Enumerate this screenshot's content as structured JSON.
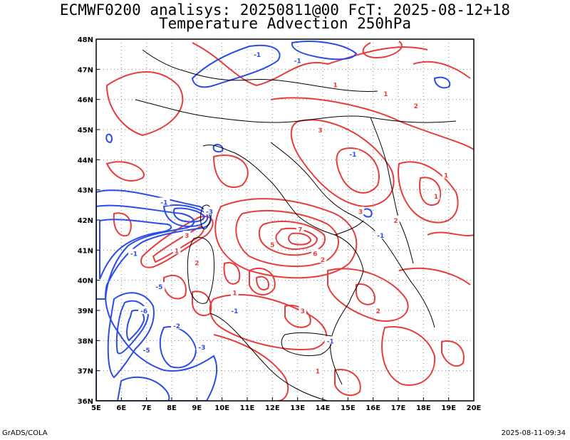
{
  "title_line1": "ECMWF0200 analisys: 20250811@00 FcT: 2025-08-12+18",
  "title_line2": "Temperature Advection 250hPa",
  "footer_left": "GrADS/COLA",
  "footer_right": "2025-08-11-09:34",
  "colors": {
    "positive_contour": "#e83c3c",
    "negative_contour": "#2b4ce8",
    "coastline": "#000000",
    "grid": "#888888"
  },
  "map": {
    "projection": "lat-lon",
    "lon_range": [
      5,
      20
    ],
    "lat_range": [
      36,
      48
    ],
    "grid": "dotted",
    "lon_ticks": [
      "5E",
      "6E",
      "7E",
      "8E",
      "9E",
      "10E",
      "11E",
      "12E",
      "13E",
      "14E",
      "15E",
      "16E",
      "17E",
      "18E",
      "19E",
      "20E"
    ],
    "lat_ticks": [
      "36N",
      "37N",
      "38N",
      "39N",
      "40N",
      "41N",
      "42N",
      "43N",
      "44N",
      "45N",
      "46N",
      "47N",
      "48N"
    ],
    "contour_labels": [
      {
        "lon": 13.0,
        "lat": 47.3,
        "text": "-1",
        "sign": "neg"
      },
      {
        "lon": 11.4,
        "lat": 47.5,
        "text": "-1",
        "sign": "neg"
      },
      {
        "lon": 18.9,
        "lat": 43.5,
        "text": "1",
        "sign": "pos"
      },
      {
        "lon": 14.5,
        "lat": 46.5,
        "text": "1",
        "sign": "pos"
      },
      {
        "lon": 16.5,
        "lat": 46.2,
        "text": "1",
        "sign": "pos"
      },
      {
        "lon": 17.7,
        "lat": 45.8,
        "text": "2",
        "sign": "pos"
      },
      {
        "lon": 13.9,
        "lat": 45.0,
        "text": "3",
        "sign": "pos"
      },
      {
        "lon": 15.2,
        "lat": 44.2,
        "text": "-1",
        "sign": "neg"
      },
      {
        "lon": 7.7,
        "lat": 42.6,
        "text": "-1",
        "sign": "neg"
      },
      {
        "lon": 9.5,
        "lat": 42.3,
        "text": "-3",
        "sign": "neg"
      },
      {
        "lon": 8.6,
        "lat": 41.5,
        "text": "3",
        "sign": "pos"
      },
      {
        "lon": 8.2,
        "lat": 41.0,
        "text": "1",
        "sign": "pos"
      },
      {
        "lon": 9.0,
        "lat": 40.6,
        "text": "2",
        "sign": "pos"
      },
      {
        "lon": 6.5,
        "lat": 40.9,
        "text": "-1",
        "sign": "neg"
      },
      {
        "lon": 7.5,
        "lat": 39.8,
        "text": "-5",
        "sign": "neg"
      },
      {
        "lon": 6.9,
        "lat": 39.0,
        "text": "-6",
        "sign": "neg"
      },
      {
        "lon": 8.2,
        "lat": 38.5,
        "text": "-2",
        "sign": "neg"
      },
      {
        "lon": 7.0,
        "lat": 37.7,
        "text": "-5",
        "sign": "neg"
      },
      {
        "lon": 9.2,
        "lat": 37.8,
        "text": "-3",
        "sign": "neg"
      },
      {
        "lon": 10.5,
        "lat": 39.6,
        "text": "1",
        "sign": "pos"
      },
      {
        "lon": 12.0,
        "lat": 41.2,
        "text": "5",
        "sign": "pos"
      },
      {
        "lon": 13.1,
        "lat": 41.7,
        "text": "7",
        "sign": "pos"
      },
      {
        "lon": 13.7,
        "lat": 40.9,
        "text": "6",
        "sign": "pos"
      },
      {
        "lon": 13.2,
        "lat": 39.0,
        "text": "3",
        "sign": "pos"
      },
      {
        "lon": 14.0,
        "lat": 40.7,
        "text": "2",
        "sign": "pos"
      },
      {
        "lon": 16.2,
        "lat": 39.0,
        "text": "2",
        "sign": "pos"
      },
      {
        "lon": 14.3,
        "lat": 38.0,
        "text": "-1",
        "sign": "neg"
      },
      {
        "lon": 15.5,
        "lat": 42.3,
        "text": "3",
        "sign": "pos"
      },
      {
        "lon": 16.3,
        "lat": 41.5,
        "text": "-1",
        "sign": "neg"
      },
      {
        "lon": 16.9,
        "lat": 42.0,
        "text": "2",
        "sign": "pos"
      },
      {
        "lon": 18.5,
        "lat": 42.8,
        "text": "1",
        "sign": "pos"
      },
      {
        "lon": 10.5,
        "lat": 39.0,
        "text": "-1",
        "sign": "neg"
      },
      {
        "lon": 13.8,
        "lat": 37.0,
        "text": "1",
        "sign": "pos"
      }
    ]
  }
}
